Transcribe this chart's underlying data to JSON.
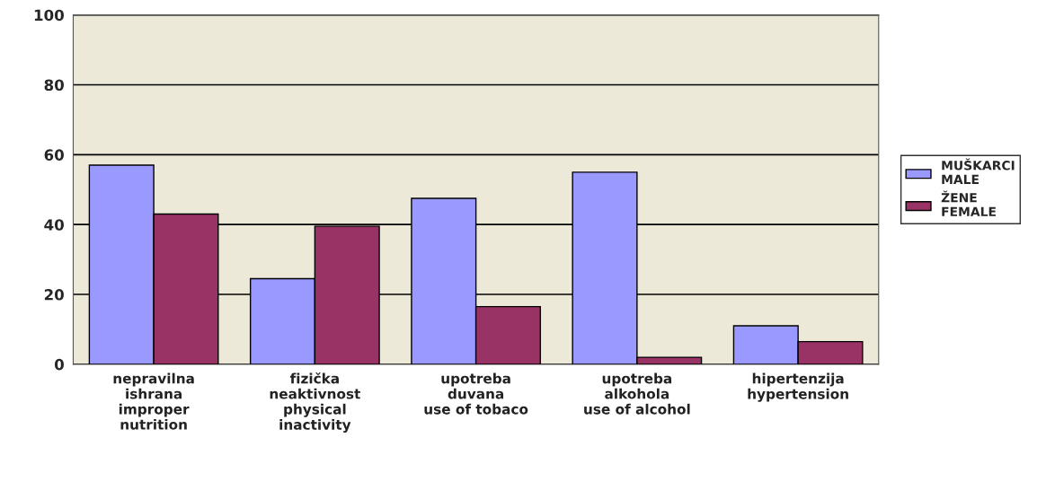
{
  "chart_data": {
    "type": "bar",
    "categories": [
      "nepravilna\nishrana\nimproper\nnutrition",
      "fizička\nneaktivnost\nphysical\ninactivity",
      "upotreba\nduvana\nuse of tobaco",
      "upotreba\nalkohola\nuse of alcohol",
      "hipertenzija\nhypertension"
    ],
    "series": [
      {
        "name": "MUŠKARCI\nMALE",
        "color": "#9999ff",
        "values": [
          57,
          24.5,
          47.5,
          55,
          11
        ]
      },
      {
        "name": "ŽENE\nFEMALE",
        "color": "#993366",
        "values": [
          43,
          39.5,
          16.5,
          2,
          6.5
        ]
      }
    ],
    "ylim": [
      0,
      100
    ],
    "yticks": [
      0,
      20,
      40,
      60,
      80,
      100
    ],
    "grid": "y",
    "legend": "right"
  }
}
